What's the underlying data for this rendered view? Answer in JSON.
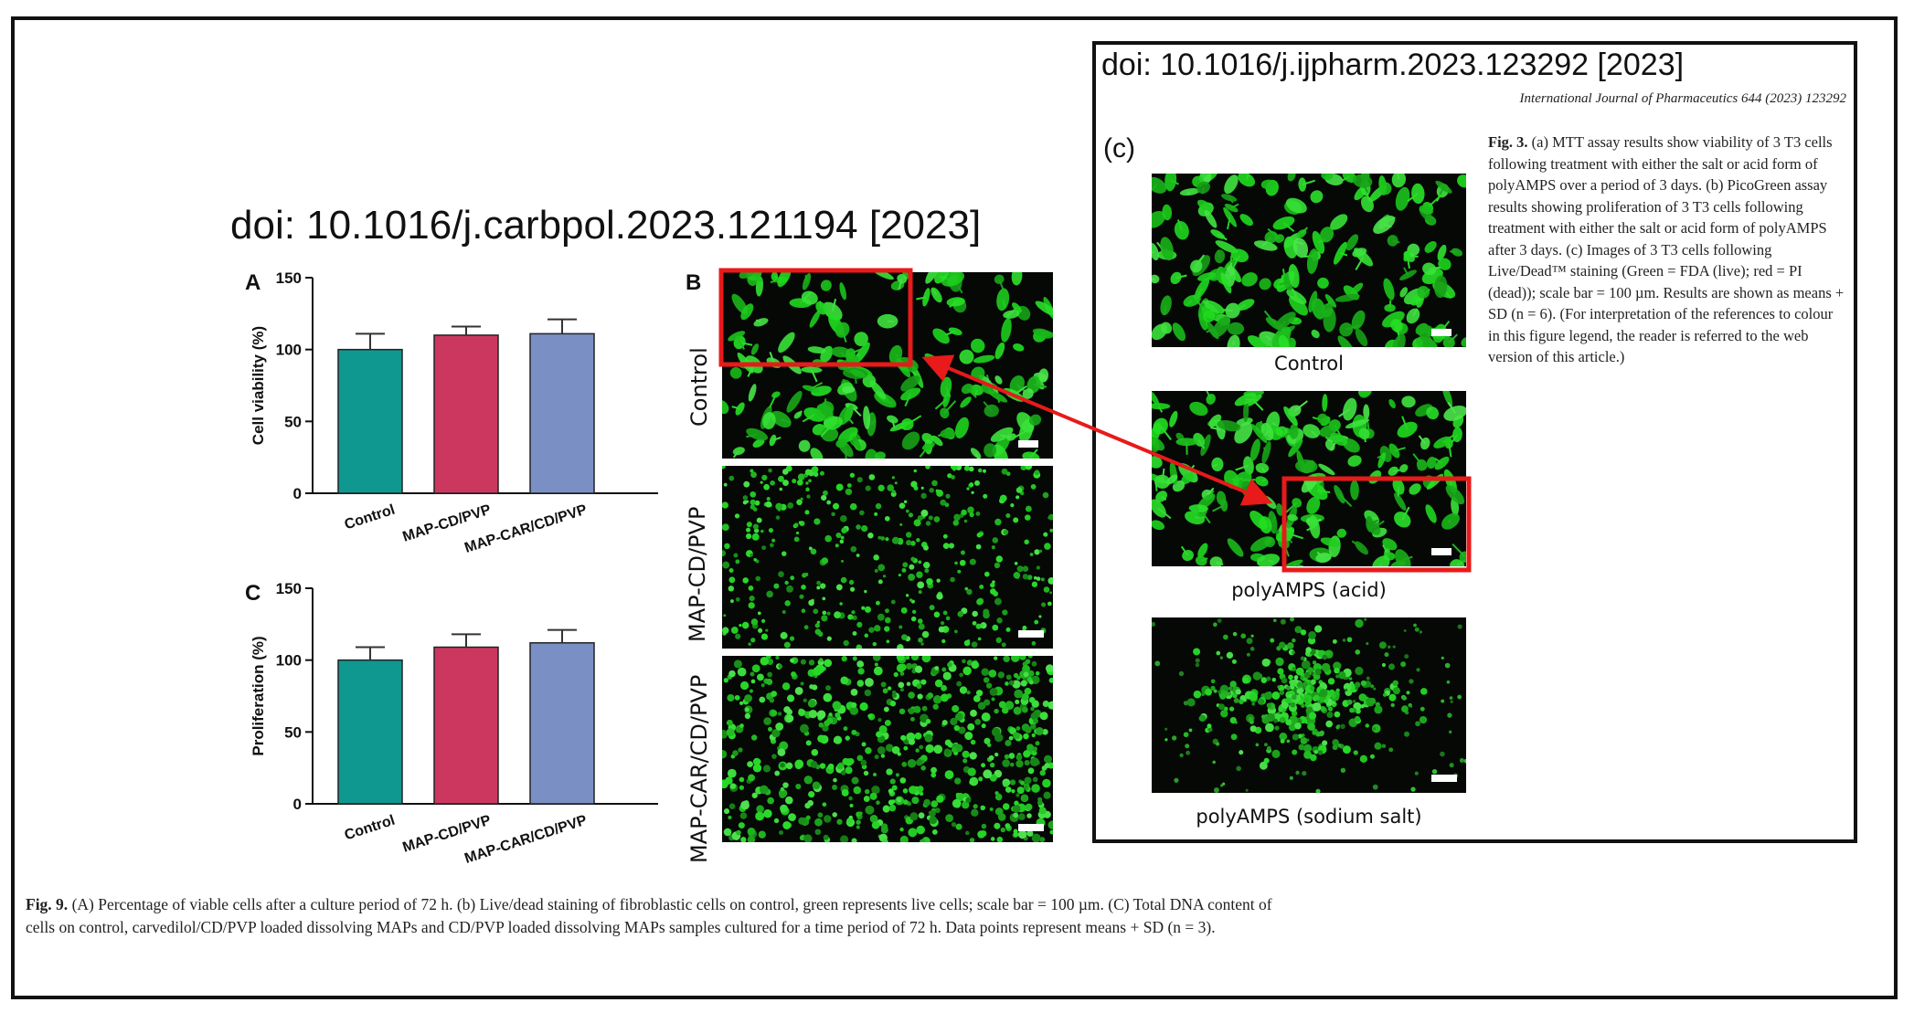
{
  "doi_left": "doi: 10.1016/j.carbpol.2023.121194 [2023]",
  "doi_right": "doi: 10.1016/j.ijpharm.2023.123292 [2023]",
  "journal_ref": "International Journal of Pharmaceutics 644 (2023) 123292",
  "fig3_caption": {
    "label": "Fig. 3.",
    "text": " (a) MTT assay results show viability of 3 T3 cells following treatment with either the salt or acid form of polyAMPS over a period of 3 days. (b) PicoGreen assay results showing proliferation of 3 T3 cells following treatment with either the salt or acid form of polyAMPS after 3 days. (c) Images of 3 T3 cells following Live/Dead™ staining (Green = FDA (live); red = PI (dead)); scale bar = 100 µm. Results are shown as means + SD (n = 6). (For interpretation of the references to colour in this figure legend, the reader is referred to the web version of this article.)"
  },
  "fig9_caption": {
    "label": "Fig. 9.",
    "text": " (A) Percentage of viable cells after a culture period of 72 h. (b) Live/dead staining of fibroblastic cells on control, green represents live cells; scale bar = 100 µm. (C) Total DNA content of cells on control, carvedilol/CD/PVP loaded dissolving MAPs and CD/PVP loaded dissolving MAPs samples cultured for a time period of 72 h. Data points represent means + SD (n = 3)."
  },
  "panel_letters": {
    "a": "A",
    "b": "B",
    "c": "C",
    "c3": "(c)"
  },
  "b_row_labels": [
    "Control",
    "MAP-CD/PVP",
    "MAP-CAR/CD/PVP"
  ],
  "c3_image_labels": [
    "Control",
    "polyAMPS (acid)",
    "polyAMPS (sodium salt)"
  ],
  "colors": {
    "control": "#0e9890",
    "map_cd_pvp": "#cc3760",
    "map_car_cd_pvp": "#7a8fc4",
    "cell_green": "#3ad63a",
    "highlight_red": "#e81a1a"
  },
  "chart_data": [
    {
      "type": "bar",
      "panel": "A",
      "ylabel": "Cell viability (%)",
      "xlabel": "",
      "ylim": [
        0,
        150
      ],
      "yticks": [
        0,
        50,
        100,
        150
      ],
      "categories": [
        "Control",
        "MAP-CD/PVP",
        "MAP-CAR/CD/PVP"
      ],
      "values": [
        100,
        110,
        111
      ],
      "errors": [
        11,
        6,
        10
      ],
      "grid": false
    },
    {
      "type": "bar",
      "panel": "C",
      "ylabel": "Proliferation (%)",
      "xlabel": "",
      "ylim": [
        0,
        150
      ],
      "yticks": [
        0,
        50,
        100,
        150
      ],
      "categories": [
        "Control",
        "MAP-CD/PVP",
        "MAP-CAR/CD/PVP"
      ],
      "values": [
        100,
        109,
        112
      ],
      "errors": [
        9,
        9,
        9
      ],
      "grid": false
    }
  ]
}
